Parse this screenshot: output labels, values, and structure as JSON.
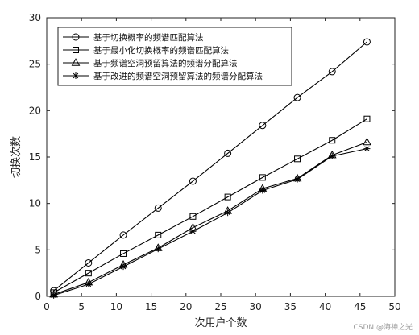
{
  "chart_data": {
    "type": "line",
    "title": "",
    "xlabel": "次用户个数",
    "ylabel": "切换次数",
    "xlim": [
      0,
      50
    ],
    "ylim": [
      0,
      30
    ],
    "x_ticks": [
      "0",
      "5",
      "10",
      "15",
      "20",
      "25",
      "30",
      "35",
      "40",
      "45",
      "50"
    ],
    "y_ticks": [
      "0",
      "5",
      "10",
      "15",
      "20",
      "25",
      "30"
    ],
    "grid": false,
    "legend_position": "top-left",
    "x": [
      1,
      6,
      11,
      16,
      21,
      26,
      31,
      36,
      41,
      46
    ],
    "series": [
      {
        "name": "基于切换概率的频谱匹配算法",
        "marker": "circle",
        "values": [
          0.6,
          3.6,
          6.6,
          9.5,
          12.4,
          15.4,
          18.4,
          21.4,
          24.2,
          27.4
        ]
      },
      {
        "name": "基于最小化切换概率的频谱匹配算法",
        "marker": "square",
        "values": [
          0.4,
          2.5,
          4.6,
          6.6,
          8.6,
          10.7,
          12.8,
          14.8,
          16.8,
          19.1
        ]
      },
      {
        "name": "基于频谱空洞预留算法的频谱分配算法",
        "marker": "triangle",
        "values": [
          0.2,
          1.5,
          3.4,
          5.2,
          7.4,
          9.2,
          11.6,
          12.7,
          15.2,
          16.6
        ]
      },
      {
        "name": "基于改进的频谱空洞预留算法的频谱分配算法",
        "marker": "star",
        "values": [
          0.1,
          1.3,
          3.2,
          5.1,
          7.0,
          9.0,
          11.4,
          12.6,
          15.1,
          15.9
        ]
      }
    ]
  },
  "watermark": "CSDN @海神之光"
}
